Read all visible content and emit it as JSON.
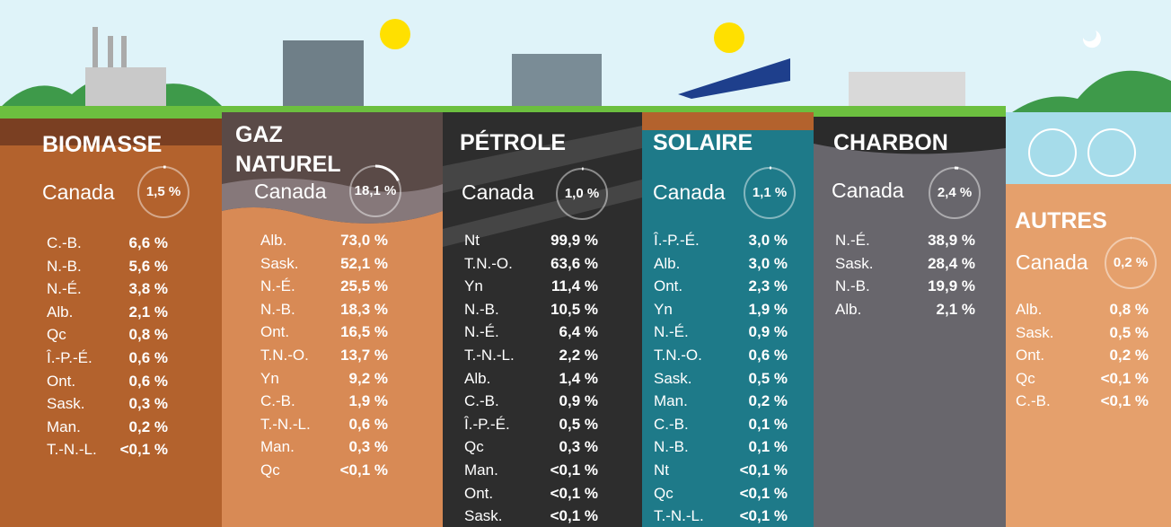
{
  "columns": [
    {
      "title": "BIOMASSE",
      "region": "Canada",
      "canada": {
        "value": 1.5,
        "label": "1,5 %"
      },
      "rows": [
        [
          "C.-B.",
          "6,6 %"
        ],
        [
          "N.-B.",
          "5,6 %"
        ],
        [
          "N.-É.",
          "3,8 %"
        ],
        [
          "Alb.",
          "2,1 %"
        ],
        [
          "Qc",
          "0,8 %"
        ],
        [
          "Î.-P.-É.",
          "0,6 %"
        ],
        [
          "Ont.",
          "0,6 %"
        ],
        [
          "Sask.",
          "0,3 %"
        ],
        [
          "Man.",
          "0,2 %"
        ],
        [
          "T.-N.-L.",
          "<0,1 %"
        ]
      ]
    },
    {
      "title": "GAZ NATUREL",
      "region": "Canada",
      "canada": {
        "value": 18.1,
        "label": "18,1 %"
      },
      "rows": [
        [
          "Alb.",
          "73,0 %"
        ],
        [
          "Sask.",
          "52,1 %"
        ],
        [
          "N.-É.",
          "25,5 %"
        ],
        [
          "N.-B.",
          "18,3 %"
        ],
        [
          "Ont.",
          "16,5 %"
        ],
        [
          "T.N.-O.",
          "13,7 %"
        ],
        [
          "Yn",
          "9,2 %"
        ],
        [
          "C.-B.",
          "1,9 %"
        ],
        [
          "T.-N.-L.",
          "0,6 %"
        ],
        [
          "Man.",
          "0,3 %"
        ],
        [
          "Qc",
          "<0,1 %"
        ]
      ]
    },
    {
      "title": "PÉTROLE",
      "region": "Canada",
      "canada": {
        "value": 1.0,
        "label": "1,0 %"
      },
      "rows": [
        [
          "Nt",
          "99,9 %"
        ],
        [
          "T.N.-O.",
          "63,6 %"
        ],
        [
          "Yn",
          "11,4 %"
        ],
        [
          "N.-B.",
          "10,5 %"
        ],
        [
          "N.-É.",
          "6,4 %"
        ],
        [
          "T.-N.-L.",
          "2,2 %"
        ],
        [
          "Alb.",
          "1,4 %"
        ],
        [
          "C.-B.",
          "0,9 %"
        ],
        [
          "Î.-P.-É.",
          "0,5 %"
        ],
        [
          "Qc",
          "0,3 %"
        ],
        [
          "Man.",
          "<0,1 %"
        ],
        [
          "Ont.",
          "<0,1 %"
        ],
        [
          "Sask.",
          "<0,1 %"
        ]
      ]
    },
    {
      "title": "SOLAIRE",
      "region": "Canada",
      "canada": {
        "value": 1.1,
        "label": "1,1 %"
      },
      "rows": [
        [
          "Î.-P.-É.",
          "3,0 %"
        ],
        [
          "Alb.",
          "3,0 %"
        ],
        [
          "Ont.",
          "2,3 %"
        ],
        [
          "Yn",
          "1,9 %"
        ],
        [
          "N.-É.",
          "0,9 %"
        ],
        [
          "T.N.-O.",
          "0,6 %"
        ],
        [
          "Sask.",
          "0,5 %"
        ],
        [
          "Man.",
          "0,2 %"
        ],
        [
          "C.-B.",
          "0,1 %"
        ],
        [
          "N.-B.",
          "0,1 %"
        ],
        [
          "Nt",
          "<0,1 %"
        ],
        [
          "Qc",
          "<0,1 %"
        ],
        [
          "T.-N.-L.",
          "<0,1 %"
        ]
      ]
    },
    {
      "title": "CHARBON",
      "region": "Canada",
      "canada": {
        "value": 2.4,
        "label": "2,4 %"
      },
      "rows": [
        [
          "N.-É.",
          "38,9 %"
        ],
        [
          "Sask.",
          "28,4 %"
        ],
        [
          "N.-B.",
          "19,9 %"
        ],
        [
          "Alb.",
          "2,1 %"
        ]
      ]
    },
    {
      "title": "AUTRES",
      "region": "Canada",
      "canada": {
        "value": 0.2,
        "label": "0,2 %"
      },
      "rows": [
        [
          "Alb.",
          "0,8 %"
        ],
        [
          "Sask.",
          "0,5 %"
        ],
        [
          "Ont.",
          "0,2 %"
        ],
        [
          "Qc",
          "<0,1 %"
        ],
        [
          "C.-B.",
          "<0,1 %"
        ]
      ]
    }
  ]
}
